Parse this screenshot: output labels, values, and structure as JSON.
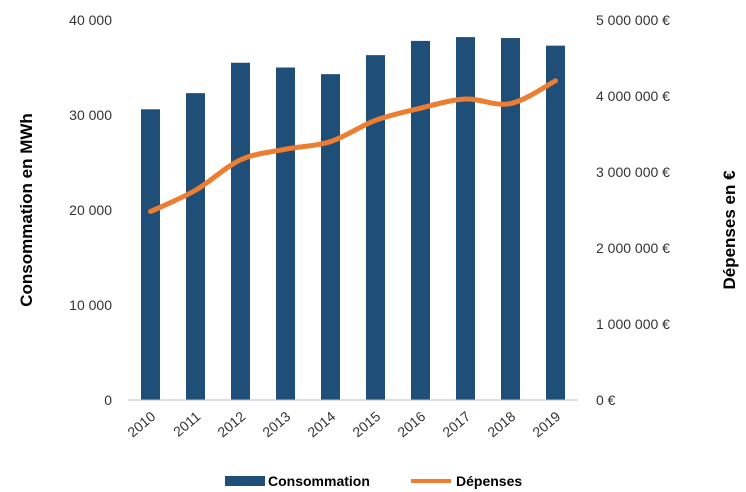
{
  "chart_data": {
    "type": "bar",
    "categories": [
      "2010",
      "2011",
      "2012",
      "2013",
      "2014",
      "2015",
      "2016",
      "2017",
      "2018",
      "2019"
    ],
    "series": [
      {
        "name": "Consommation",
        "type": "bar",
        "axis": "left",
        "color": "#1f4e79",
        "values": [
          30600,
          32300,
          35500,
          35000,
          34300,
          36300,
          37800,
          38200,
          38100,
          37300
        ]
      },
      {
        "name": "Dépenses",
        "type": "line",
        "axis": "right",
        "color": "#ed7d31",
        "values": [
          2480000,
          2760000,
          3160000,
          3300000,
          3400000,
          3680000,
          3840000,
          3960000,
          3900000,
          4200000
        ]
      }
    ],
    "ylabel": "Consommation en MWh",
    "y2label": "Dépenses en €",
    "ylim": [
      0,
      40000
    ],
    "y2lim": [
      0,
      5000000
    ],
    "yticks": [
      "0",
      "10 000",
      "20 000",
      "30 000",
      "40 000"
    ],
    "y2ticks": [
      "0 €",
      "1 000 000 €",
      "2 000 000 €",
      "3 000 000 €",
      "4 000 000 €",
      "5 000 000 €"
    ],
    "grid": false,
    "legend_position": "bottom"
  }
}
